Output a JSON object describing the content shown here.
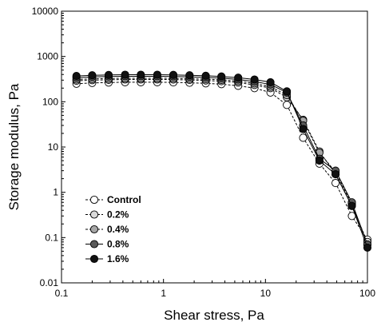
{
  "chart_data": {
    "type": "line",
    "title": "",
    "xlabel": "Shear stress, Pa",
    "ylabel": "Storage modulus, Pa",
    "x_scale": "log",
    "y_scale": "log",
    "xlim": [
      0.1,
      100
    ],
    "ylim": [
      0.01,
      10000
    ],
    "x_tick_labels": [
      "0.1",
      "1",
      "10",
      "100"
    ],
    "y_tick_labels": [
      "0.01",
      "0.1",
      "1",
      "10",
      "100",
      "1000",
      "10000"
    ],
    "grid": false,
    "legend_position": "lower-left",
    "series": [
      {
        "name": "Control",
        "marker": "circle-open",
        "line_style": "dashed",
        "color": "#000000",
        "fill": "#ffffff",
        "x": [
          0.14,
          0.2,
          0.29,
          0.42,
          0.6,
          0.87,
          1.25,
          1.8,
          2.6,
          3.7,
          5.4,
          7.8,
          11.2,
          16.2,
          23.4,
          33.8,
          48.7,
          70.4,
          100
        ],
        "y": [
          250,
          260,
          265,
          270,
          270,
          270,
          268,
          262,
          255,
          245,
          225,
          200,
          160,
          85,
          16,
          4.3,
          1.6,
          0.3,
          0.09
        ]
      },
      {
        "name": "0.2%",
        "marker": "circle-light",
        "line_style": "dashed",
        "color": "#000000",
        "fill": "#d9d9d9",
        "x": [
          0.14,
          0.2,
          0.29,
          0.42,
          0.6,
          0.87,
          1.25,
          1.8,
          2.6,
          3.7,
          5.4,
          7.8,
          11.2,
          16.2,
          23.4,
          33.8,
          48.7,
          70.4,
          100
        ],
        "y": [
          290,
          300,
          305,
          310,
          310,
          310,
          308,
          302,
          295,
          285,
          265,
          235,
          200,
          125,
          40,
          8.0,
          2.5,
          0.5,
          0.08
        ]
      },
      {
        "name": "0.4%",
        "marker": "circle-gray",
        "line_style": "dashed",
        "color": "#000000",
        "fill": "#a6a6a6",
        "x": [
          0.14,
          0.2,
          0.29,
          0.42,
          0.6,
          0.87,
          1.25,
          1.8,
          2.6,
          3.7,
          5.4,
          7.8,
          11.2,
          16.2,
          23.4,
          33.8,
          48.7,
          70.4,
          100
        ],
        "y": [
          310,
          320,
          325,
          330,
          330,
          330,
          328,
          322,
          315,
          305,
          285,
          255,
          215,
          140,
          38,
          7.5,
          2.8,
          0.55,
          0.07
        ]
      },
      {
        "name": "0.8%",
        "marker": "circle-dark",
        "line_style": "solid",
        "color": "#000000",
        "fill": "#595959",
        "x": [
          0.14,
          0.2,
          0.29,
          0.42,
          0.6,
          0.87,
          1.25,
          1.8,
          2.6,
          3.7,
          5.4,
          7.8,
          11.2,
          16.2,
          23.4,
          33.8,
          48.7,
          70.4,
          100
        ],
        "y": [
          340,
          355,
          360,
          365,
          365,
          365,
          362,
          355,
          345,
          332,
          310,
          280,
          240,
          160,
          30,
          5.5,
          3.0,
          0.6,
          0.07
        ]
      },
      {
        "name": "1.6%",
        "marker": "circle-filled",
        "line_style": "solid",
        "color": "#000000",
        "fill": "#111111",
        "x": [
          0.14,
          0.2,
          0.29,
          0.42,
          0.6,
          0.87,
          1.25,
          1.8,
          2.6,
          3.7,
          5.4,
          7.8,
          11.2,
          16.2,
          23.4,
          33.8,
          48.7,
          70.4,
          100
        ],
        "y": [
          370,
          385,
          390,
          395,
          395,
          395,
          392,
          385,
          375,
          362,
          340,
          310,
          270,
          170,
          25,
          5.0,
          2.5,
          0.5,
          0.06
        ]
      }
    ]
  }
}
